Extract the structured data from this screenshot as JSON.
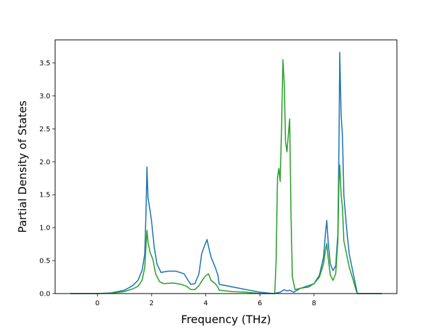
{
  "chart_data": {
    "type": "line",
    "xlabel": "Frequency (THz)",
    "ylabel": "Partial Density of States",
    "xlim": [
      -1.56,
      11.06
    ],
    "ylim": [
      0.0,
      3.85
    ],
    "grid": false,
    "xticks": [
      0,
      2,
      4,
      6,
      8
    ],
    "yticks": [
      0.0,
      0.5,
      1.0,
      1.5,
      2.0,
      2.5,
      3.0,
      3.5
    ],
    "xtick_labels": [
      "0",
      "2",
      "4",
      "6",
      "8"
    ],
    "ytick_labels": [
      "0.0",
      "0.5",
      "1.0",
      "1.5",
      "2.0",
      "2.5",
      "3.0",
      "3.5"
    ],
    "series": [
      {
        "color": "#1f77b4",
        "points": [
          [
            -1.0,
            0.0
          ],
          [
            0.0,
            0.0
          ],
          [
            0.5,
            0.01
          ],
          [
            1.0,
            0.05
          ],
          [
            1.3,
            0.12
          ],
          [
            1.5,
            0.2
          ],
          [
            1.65,
            0.35
          ],
          [
            1.75,
            0.6
          ],
          [
            1.8,
            1.3
          ],
          [
            1.83,
            1.92
          ],
          [
            1.87,
            1.45
          ],
          [
            1.95,
            1.25
          ],
          [
            2.0,
            1.1
          ],
          [
            2.1,
            0.7
          ],
          [
            2.2,
            0.45
          ],
          [
            2.35,
            0.32
          ],
          [
            2.6,
            0.34
          ],
          [
            2.9,
            0.34
          ],
          [
            3.2,
            0.3
          ],
          [
            3.35,
            0.2
          ],
          [
            3.45,
            0.14
          ],
          [
            3.6,
            0.15
          ],
          [
            3.75,
            0.3
          ],
          [
            3.85,
            0.6
          ],
          [
            3.95,
            0.72
          ],
          [
            4.05,
            0.82
          ],
          [
            4.1,
            0.72
          ],
          [
            4.2,
            0.55
          ],
          [
            4.35,
            0.4
          ],
          [
            4.45,
            0.28
          ],
          [
            4.5,
            0.14
          ],
          [
            5.0,
            0.1
          ],
          [
            5.5,
            0.06
          ],
          [
            6.0,
            0.02
          ],
          [
            6.5,
            0.0
          ],
          [
            6.75,
            0.02
          ],
          [
            6.9,
            0.06
          ],
          [
            7.0,
            0.04
          ],
          [
            7.1,
            0.05
          ],
          [
            7.25,
            0.02
          ],
          [
            7.5,
            0.08
          ],
          [
            7.8,
            0.12
          ],
          [
            8.0,
            0.15
          ],
          [
            8.2,
            0.28
          ],
          [
            8.35,
            0.55
          ],
          [
            8.42,
            0.9
          ],
          [
            8.47,
            1.11
          ],
          [
            8.52,
            0.8
          ],
          [
            8.6,
            0.45
          ],
          [
            8.7,
            0.35
          ],
          [
            8.8,
            0.42
          ],
          [
            8.88,
            0.9
          ],
          [
            8.92,
            2.2
          ],
          [
            8.95,
            3.66
          ],
          [
            9.0,
            2.7
          ],
          [
            9.05,
            2.4
          ],
          [
            9.1,
            1.5
          ],
          [
            9.2,
            1.0
          ],
          [
            9.3,
            0.6
          ],
          [
            9.45,
            0.3
          ],
          [
            9.6,
            0.0
          ],
          [
            10.5,
            0.0
          ]
        ]
      },
      {
        "color": "#2ca02c",
        "points": [
          [
            -1.0,
            0.0
          ],
          [
            0.0,
            0.0
          ],
          [
            0.5,
            0.005
          ],
          [
            1.0,
            0.03
          ],
          [
            1.3,
            0.07
          ],
          [
            1.5,
            0.11
          ],
          [
            1.65,
            0.2
          ],
          [
            1.75,
            0.4
          ],
          [
            1.8,
            0.75
          ],
          [
            1.83,
            0.96
          ],
          [
            1.87,
            0.78
          ],
          [
            1.95,
            0.62
          ],
          [
            2.05,
            0.52
          ],
          [
            2.15,
            0.3
          ],
          [
            2.3,
            0.18
          ],
          [
            2.45,
            0.15
          ],
          [
            2.8,
            0.16
          ],
          [
            3.1,
            0.14
          ],
          [
            3.3,
            0.11
          ],
          [
            3.45,
            0.06
          ],
          [
            3.6,
            0.06
          ],
          [
            3.75,
            0.12
          ],
          [
            3.9,
            0.22
          ],
          [
            4.0,
            0.27
          ],
          [
            4.1,
            0.3
          ],
          [
            4.2,
            0.2
          ],
          [
            4.35,
            0.15
          ],
          [
            4.45,
            0.1
          ],
          [
            4.5,
            0.05
          ],
          [
            5.0,
            0.03
          ],
          [
            5.5,
            0.02
          ],
          [
            6.0,
            0.0
          ],
          [
            6.55,
            0.0
          ],
          [
            6.6,
            0.5
          ],
          [
            6.65,
            1.75
          ],
          [
            6.7,
            1.9
          ],
          [
            6.75,
            1.7
          ],
          [
            6.8,
            2.5
          ],
          [
            6.85,
            3.55
          ],
          [
            6.9,
            3.2
          ],
          [
            6.95,
            2.3
          ],
          [
            7.0,
            2.15
          ],
          [
            7.05,
            2.4
          ],
          [
            7.1,
            2.65
          ],
          [
            7.15,
            1.2
          ],
          [
            7.2,
            0.25
          ],
          [
            7.3,
            0.06
          ],
          [
            7.5,
            0.08
          ],
          [
            7.8,
            0.1
          ],
          [
            8.0,
            0.15
          ],
          [
            8.2,
            0.25
          ],
          [
            8.35,
            0.45
          ],
          [
            8.42,
            0.65
          ],
          [
            8.47,
            0.76
          ],
          [
            8.52,
            0.55
          ],
          [
            8.6,
            0.28
          ],
          [
            8.7,
            0.2
          ],
          [
            8.8,
            0.3
          ],
          [
            8.88,
            0.8
          ],
          [
            8.92,
            1.7
          ],
          [
            8.95,
            1.95
          ],
          [
            9.0,
            1.5
          ],
          [
            9.05,
            1.3
          ],
          [
            9.1,
            0.8
          ],
          [
            9.2,
            0.6
          ],
          [
            9.3,
            0.4
          ],
          [
            9.45,
            0.2
          ],
          [
            9.55,
            0.05
          ],
          [
            9.6,
            0.0
          ],
          [
            10.5,
            0.0
          ]
        ]
      }
    ]
  }
}
